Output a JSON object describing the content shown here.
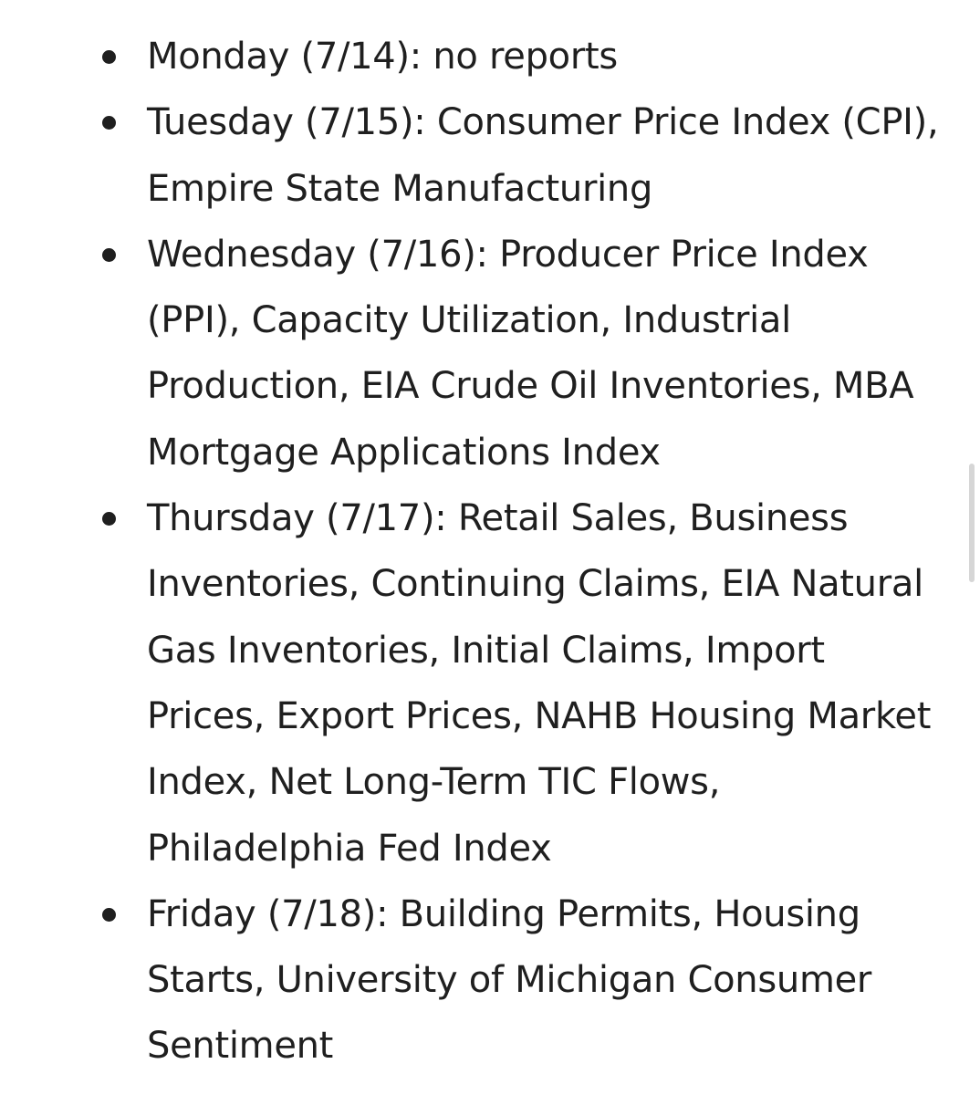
{
  "schedule": {
    "items": [
      {
        "text": "Monday (7/14): no reports"
      },
      {
        "text": "Tuesday (7/15): Consumer Price Index (CPI), Empire State Manufacturing"
      },
      {
        "text": "Wednesday (7/16): Producer Price Index (PPI), Capacity Utilization, Industrial Production, EIA Crude Oil Inventories, MBA Mortgage Applications Index"
      },
      {
        "text": "Thursday (7/17): Retail Sales, Business Inventories, Continuing Claims, EIA Natural Gas Inventories, Initial Claims, Import Prices, Export Prices, NAHB Housing Market Index, Net Long-Term TIC Flows, Philadelphia Fed Index"
      },
      {
        "text": "Friday (7/18): Building Permits, Housing Starts, University of Michigan Consumer Sentiment"
      }
    ]
  },
  "colors": {
    "text": "#1f1f1f",
    "background": "#ffffff",
    "scrollbar": "#d6d6d6"
  }
}
